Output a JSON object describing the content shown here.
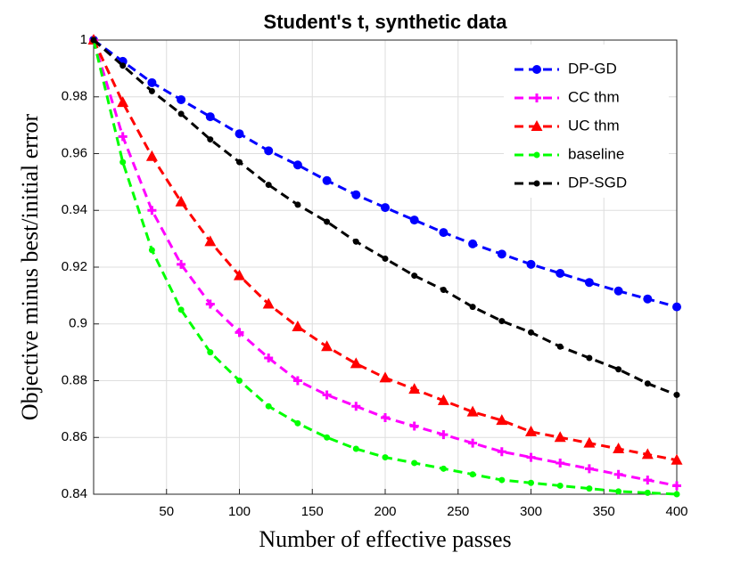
{
  "chart_data": {
    "type": "line",
    "title": "Student's t, synthetic data",
    "xlabel": "Number of effective passes",
    "ylabel": "Objective minus best/initial error",
    "x": [
      0,
      20,
      40,
      60,
      80,
      100,
      120,
      140,
      160,
      180,
      200,
      220,
      240,
      260,
      280,
      300,
      320,
      340,
      360,
      380,
      400
    ],
    "series": [
      {
        "name": "DP-GD",
        "color": "#0000ff",
        "marker": "circle",
        "values": [
          1,
          0.9925,
          0.985,
          0.979,
          0.973,
          0.967,
          0.961,
          0.956,
          0.9505,
          0.9455,
          0.941,
          0.9366,
          0.9322,
          0.9282,
          0.9246,
          0.921,
          0.9178,
          0.9146,
          0.9116,
          0.9088,
          0.906
        ]
      },
      {
        "name": "CC thm",
        "color": "#ff00ff",
        "marker": "plus",
        "values": [
          1,
          0.966,
          0.94,
          0.921,
          0.907,
          0.897,
          0.888,
          0.88,
          0.875,
          0.871,
          0.867,
          0.864,
          0.861,
          0.858,
          0.855,
          0.853,
          0.851,
          0.849,
          0.847,
          0.845,
          0.843
        ]
      },
      {
        "name": "UC thm",
        "color": "#ff0000",
        "marker": "triangle",
        "values": [
          1,
          0.978,
          0.959,
          0.943,
          0.929,
          0.917,
          0.907,
          0.899,
          0.892,
          0.886,
          0.881,
          0.877,
          0.873,
          0.869,
          0.866,
          0.862,
          0.86,
          0.858,
          0.856,
          0.854,
          0.852
        ]
      },
      {
        "name": "baseline",
        "color": "#00ff00",
        "marker": "dot",
        "values": [
          1,
          0.957,
          0.926,
          0.905,
          0.89,
          0.88,
          0.871,
          0.865,
          0.86,
          0.856,
          0.853,
          0.851,
          0.849,
          0.847,
          0.845,
          0.844,
          0.843,
          0.842,
          0.841,
          0.8405,
          0.84
        ]
      },
      {
        "name": "DP-SGD",
        "color": "#000000",
        "marker": "dot",
        "values": [
          1,
          0.991,
          0.982,
          0.974,
          0.965,
          0.957,
          0.949,
          0.942,
          0.936,
          0.929,
          0.923,
          0.917,
          0.912,
          0.906,
          0.901,
          0.897,
          0.892,
          0.888,
          0.884,
          0.879,
          0.875
        ]
      }
    ],
    "xlim": [
      0,
      400
    ],
    "xticks": [
      50,
      100,
      150,
      200,
      250,
      300,
      350,
      400
    ],
    "ylim": [
      0.84,
      1
    ],
    "yticks": [
      0.84,
      0.86,
      0.88,
      0.9,
      0.92,
      0.94,
      0.96,
      0.98,
      1
    ],
    "grid": true,
    "legend": "top-right"
  }
}
